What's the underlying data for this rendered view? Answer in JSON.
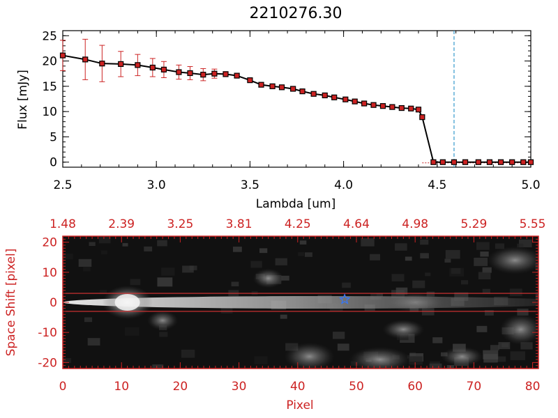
{
  "chart_data": [
    {
      "type": "scatter",
      "title": "2210276.30",
      "xlabel": "Lambda [um]",
      "ylabel": "Flux [mJy]",
      "xlim": [
        2.5,
        5.0
      ],
      "ylim": [
        -1,
        26
      ],
      "xticks": [
        {
          "value": 2.5,
          "label": "2.5"
        },
        {
          "value": 3.0,
          "label": "3.0"
        },
        {
          "value": 3.5,
          "label": "3.5"
        },
        {
          "value": 4.0,
          "label": "4.0"
        },
        {
          "value": 4.5,
          "label": "4.5"
        },
        {
          "value": 5.0,
          "label": "5.0"
        }
      ],
      "yticks": [
        {
          "value": 0,
          "label": "0"
        },
        {
          "value": 5,
          "label": "5"
        },
        {
          "value": 10,
          "label": "10"
        },
        {
          "value": 15,
          "label": "15"
        },
        {
          "value": 20,
          "label": "20"
        },
        {
          "value": 25,
          "label": "25"
        }
      ],
      "marker_line_x": 4.59,
      "colors": {
        "points": "#cc2222",
        "line": "#000000",
        "errorbars": "#cc2222",
        "marker_line": "#3399cc"
      },
      "x": [
        2.5,
        2.62,
        2.71,
        2.81,
        2.9,
        2.98,
        3.04,
        3.12,
        3.18,
        3.25,
        3.31,
        3.37,
        3.43,
        3.5,
        3.56,
        3.62,
        3.67,
        3.73,
        3.78,
        3.84,
        3.9,
        3.95,
        4.01,
        4.06,
        4.11,
        4.16,
        4.21,
        4.26,
        4.31,
        4.36,
        4.4,
        4.42,
        4.48,
        4.53,
        4.59,
        4.65,
        4.72,
        4.78,
        4.84,
        4.9,
        4.96,
        5.0
      ],
      "y": [
        21.1,
        20.3,
        19.5,
        19.4,
        19.2,
        18.7,
        18.3,
        17.8,
        17.6,
        17.3,
        17.5,
        17.4,
        17.1,
        16.2,
        15.3,
        15.0,
        14.8,
        14.5,
        14.0,
        13.5,
        13.2,
        12.8,
        12.4,
        12.0,
        11.6,
        11.3,
        11.1,
        10.9,
        10.7,
        10.6,
        10.4,
        8.9,
        0,
        0,
        0,
        0,
        0,
        0,
        0,
        0,
        0,
        0
      ],
      "yerr": [
        3.0,
        4.0,
        3.6,
        2.5,
        2.1,
        1.8,
        1.6,
        1.4,
        1.3,
        1.2,
        0.9,
        0.5,
        0,
        0,
        0,
        0,
        0,
        0,
        0,
        0,
        0,
        0,
        0,
        0,
        0,
        0,
        0,
        0,
        0,
        0,
        0,
        0,
        0,
        0,
        0,
        0,
        0,
        0,
        0,
        0,
        0,
        0
      ]
    },
    {
      "type": "heatmap",
      "xlabel": "Pixel",
      "ylabel": "Space Shift [pixel]",
      "xlim": [
        0,
        81
      ],
      "ylim": [
        -22,
        22
      ],
      "xticks": [
        {
          "value": 0,
          "label": "0"
        },
        {
          "value": 10,
          "label": "10"
        },
        {
          "value": 20,
          "label": "20"
        },
        {
          "value": 30,
          "label": "30"
        },
        {
          "value": 40,
          "label": "40"
        },
        {
          "value": 50,
          "label": "50"
        },
        {
          "value": 60,
          "label": "60"
        },
        {
          "value": 70,
          "label": "70"
        },
        {
          "value": 80,
          "label": "80"
        }
      ],
      "yticks": [
        {
          "value": -20,
          "label": "-20"
        },
        {
          "value": -10,
          "label": "-10"
        },
        {
          "value": 0,
          "label": "0"
        },
        {
          "value": 10,
          "label": "10"
        },
        {
          "value": 20,
          "label": "20"
        }
      ],
      "top_ticks": [
        {
          "value": 0,
          "label": "1.48"
        },
        {
          "value": 10,
          "label": "2.39"
        },
        {
          "value": 20,
          "label": "3.25"
        },
        {
          "value": 30,
          "label": "3.81"
        },
        {
          "value": 40,
          "label": "4.25"
        },
        {
          "value": 50,
          "label": "4.64"
        },
        {
          "value": 60,
          "label": "4.98"
        },
        {
          "value": 70,
          "label": "5.29"
        },
        {
          "value": 80,
          "label": "5.55"
        }
      ],
      "aperture_lines_y": [
        3,
        -3
      ],
      "star_marker": {
        "x": 48,
        "y": 1
      },
      "colors": {
        "axes": "#cc2222",
        "aperture": "#dd3333",
        "star": "#3377ff"
      }
    }
  ]
}
